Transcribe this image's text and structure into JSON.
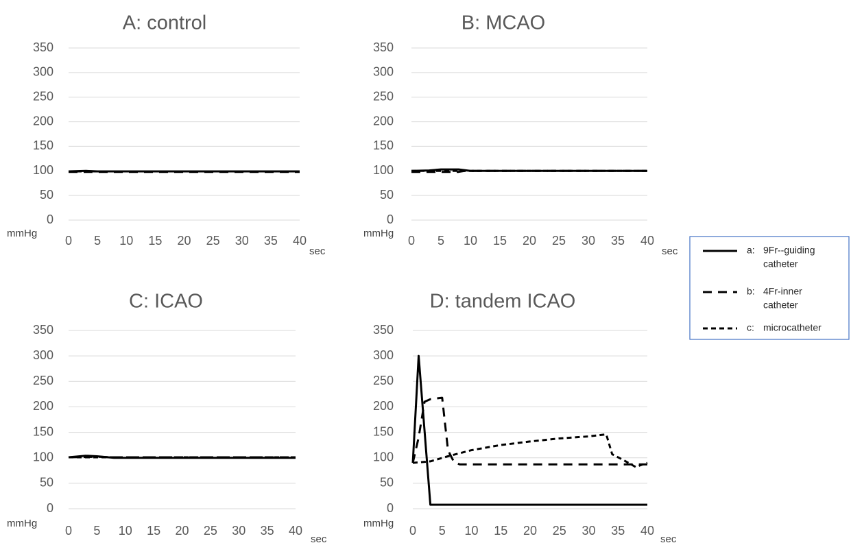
{
  "chart_data": [
    {
      "type": "line",
      "title": "A: control",
      "ylabel": "mmHg",
      "xlabel": "sec",
      "ylim": [
        0,
        350
      ],
      "y_ticks": [
        "0",
        "50",
        "100",
        "150",
        "200",
        "250",
        "300",
        "350"
      ],
      "x_ticks": [
        "0",
        "5",
        "10",
        "15",
        "20",
        "25",
        "30",
        "35",
        "40"
      ],
      "grid": true,
      "series": [
        {
          "name": "a: 9Fr--guiding catheter",
          "style": "solid",
          "x": [
            0,
            3,
            5,
            40
          ],
          "y": [
            99,
            100,
            99,
            99
          ]
        },
        {
          "name": "b: 4Fr-inner catheter",
          "style": "dashed",
          "x": [
            0,
            40
          ],
          "y": [
            98,
            98
          ]
        },
        {
          "name": "c: microcatheter",
          "style": "dotted",
          "x": [
            0,
            40
          ],
          "y": [
            99,
            99
          ]
        }
      ]
    },
    {
      "type": "line",
      "title": "B: MCAO",
      "ylabel": "mmHg",
      "xlabel": "sec",
      "ylim": [
        0,
        350
      ],
      "y_ticks": [
        "0",
        "50",
        "100",
        "150",
        "200",
        "250",
        "300",
        "350"
      ],
      "x_ticks": [
        "0",
        "5",
        "10",
        "15",
        "20",
        "25",
        "30",
        "35",
        "40"
      ],
      "grid": true,
      "series": [
        {
          "name": "a: 9Fr--guiding catheter",
          "style": "solid",
          "x": [
            0,
            3,
            5,
            8,
            10,
            40
          ],
          "y": [
            100,
            101,
            103,
            103,
            100,
            100
          ]
        },
        {
          "name": "b: 4Fr-inner catheter",
          "style": "dashed",
          "x": [
            0,
            5,
            8,
            9,
            40
          ],
          "y": [
            98,
            98,
            98,
            100,
            100
          ]
        },
        {
          "name": "c: microcatheter",
          "style": "dotted",
          "x": [
            0,
            40
          ],
          "y": [
            100,
            100
          ]
        }
      ]
    },
    {
      "type": "line",
      "title": "C: ICAO",
      "ylabel": "mmHg",
      "xlabel": "sec",
      "ylim": [
        0,
        350
      ],
      "y_ticks": [
        "0",
        "50",
        "100",
        "150",
        "200",
        "250",
        "300",
        "350"
      ],
      "x_ticks": [
        "0",
        "5",
        "10",
        "15",
        "20",
        "25",
        "30",
        "35",
        "40"
      ],
      "grid": true,
      "series": [
        {
          "name": "a: 9Fr--guiding catheter",
          "style": "solid",
          "x": [
            0,
            3,
            5,
            8,
            10,
            40
          ],
          "y": [
            101,
            104,
            103,
            100,
            100,
            100
          ]
        },
        {
          "name": "b: 4Fr-inner catheter",
          "style": "dashed",
          "x": [
            0,
            5,
            8,
            40
          ],
          "y": [
            101,
            102,
            101,
            101
          ]
        },
        {
          "name": "c: microcatheter",
          "style": "dotted",
          "x": [
            0,
            40
          ],
          "y": [
            101,
            101
          ]
        }
      ]
    },
    {
      "type": "line",
      "title": "D: tandem ICAO",
      "ylabel": "mmHg",
      "xlabel": "sec",
      "ylim": [
        0,
        350
      ],
      "y_ticks": [
        "0",
        "50",
        "100",
        "150",
        "200",
        "250",
        "300",
        "350"
      ],
      "x_ticks": [
        "0",
        "5",
        "10",
        "15",
        "20",
        "25",
        "30",
        "35",
        "40"
      ],
      "grid": true,
      "series": [
        {
          "name": "a: 9Fr--guiding catheter",
          "style": "solid",
          "x": [
            0,
            1,
            3,
            40
          ],
          "y": [
            90,
            300,
            8,
            8
          ]
        },
        {
          "name": "b: 4Fr-inner catheter",
          "style": "dashed",
          "x": [
            0,
            1,
            2,
            3,
            5,
            6,
            7,
            8,
            40
          ],
          "y": [
            90,
            140,
            210,
            215,
            218,
            115,
            92,
            87,
            87
          ]
        },
        {
          "name": "c: microcatheter",
          "style": "dotted",
          "x": [
            0,
            3,
            6,
            10,
            15,
            20,
            25,
            30,
            33,
            34,
            36,
            38,
            40
          ],
          "y": [
            90,
            93,
            103,
            115,
            125,
            132,
            138,
            142,
            146,
            107,
            95,
            82,
            90
          ]
        }
      ]
    }
  ],
  "legend": {
    "placement": "right",
    "items": [
      {
        "key": "a:",
        "label_line1": "9Fr--guiding",
        "label_line2": "catheter",
        "style": "solid"
      },
      {
        "key": "b:",
        "label_line1": "4Fr-inner",
        "label_line2": "catheter",
        "style": "dashed"
      },
      {
        "key": "c:",
        "label_line1": "microcatheter",
        "label_line2": "",
        "style": "dotted"
      }
    ]
  },
  "colors": {
    "line": "#000000",
    "grid": "#d9d9d9",
    "text": "#595959",
    "legend_border": "#4472c4"
  }
}
